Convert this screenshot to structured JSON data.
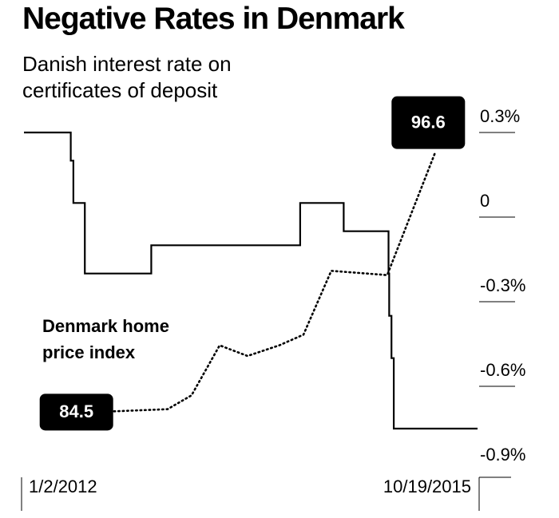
{
  "chart_data": {
    "type": "line",
    "title": "Negative Rates in Denmark",
    "xlim": [
      "2012-01-02",
      "2015-10-19"
    ],
    "xticks": [
      {
        "value": "2012-01-02",
        "label": "1/2/2012"
      },
      {
        "value": "2015-10-19",
        "label": "10/19/2015"
      }
    ],
    "ylim": [
      -0.9,
      0.3
    ],
    "yticks": [
      {
        "value": 0.3,
        "label": "0.3%"
      },
      0,
      {
        "value": -0.3,
        "label": "-0.3%"
      },
      {
        "value": -0.6,
        "label": "-0.6%"
      },
      {
        "value": -0.9,
        "label": "-0.9%"
      }
    ],
    "y2lim": [
      81.7,
      97.6
    ],
    "series": [
      {
        "name": "Danish interest rate on certificates of deposit",
        "color": "#000000",
        "style": "step",
        "x": [
          "2012-01-02",
          "2012-05-24",
          "2012-06-01",
          "2012-07-06",
          "2013-01-25",
          "2014-04-25",
          "2014-09-05",
          "2015-01-20",
          "2015-01-22",
          "2015-01-29",
          "2015-02-05",
          "2015-10-19"
        ],
        "values": [
          0.3,
          0.2,
          0.05,
          -0.2,
          -0.1,
          0.05,
          -0.05,
          -0.2,
          -0.35,
          -0.5,
          -0.75,
          -0.75
        ]
      },
      {
        "name": "Denmark home price index",
        "color": "#000000",
        "style": "dotted",
        "axis": "y2",
        "x": [
          "2012-10-03",
          "2013-03-16",
          "2013-05-28",
          "2013-08-22",
          "2013-11-15",
          "2014-02-20",
          "2014-05-05",
          "2014-07-29",
          "2015-01-16",
          "2015-06-10"
        ],
        "values": [
          84.5,
          84.6,
          85.25,
          87.6,
          87.1,
          87.6,
          88.1,
          91.1,
          90.9,
          96.6
        ]
      }
    ]
  }
}
